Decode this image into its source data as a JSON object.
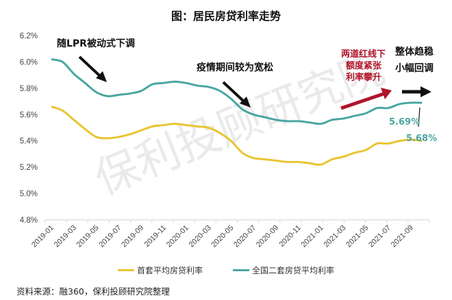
{
  "title": "图：居民房贷利率走势",
  "chart_data": {
    "type": "line",
    "title": "图：居民房贷利率走势",
    "xlabel": "",
    "ylabel": "",
    "ylim": [
      4.8,
      6.2
    ],
    "yticks": [
      "6.2%",
      "6.0%",
      "5.8%",
      "5.6%",
      "5.4%",
      "5.2%",
      "5.0%",
      "4.8%"
    ],
    "xtick_labels": [
      "2019-01",
      "2019-03",
      "2019-05",
      "2019-07",
      "2019-09",
      "2019-11",
      "2020-01",
      "2020-03",
      "2020-05",
      "2020-07",
      "2020-09",
      "2020-11",
      "2021-01",
      "2021-03",
      "2021-05",
      "2021-07",
      "2021-09"
    ],
    "x": [
      "2019-01",
      "2019-02",
      "2019-03",
      "2019-04",
      "2019-05",
      "2019-06",
      "2019-07",
      "2019-08",
      "2019-09",
      "2019-10",
      "2019-11",
      "2019-12",
      "2020-01",
      "2020-02",
      "2020-03",
      "2020-04",
      "2020-05",
      "2020-06",
      "2020-07",
      "2020-08",
      "2020-09",
      "2020-10",
      "2020-11",
      "2020-12",
      "2021-01",
      "2021-02",
      "2021-03",
      "2021-04",
      "2021-05",
      "2021-06",
      "2021-07",
      "2021-08",
      "2021-09",
      "2021-10"
    ],
    "grid": false,
    "legend_position": "bottom",
    "series": [
      {
        "name": "首套平均房贷利率",
        "color": "#e8c532",
        "values": [
          5.66,
          5.63,
          5.56,
          5.49,
          5.43,
          5.42,
          5.43,
          5.45,
          5.48,
          5.51,
          5.52,
          5.53,
          5.52,
          5.51,
          5.5,
          5.46,
          5.4,
          5.31,
          5.27,
          5.26,
          5.25,
          5.24,
          5.24,
          5.23,
          5.22,
          5.26,
          5.28,
          5.31,
          5.33,
          5.38,
          5.38,
          5.4,
          5.41,
          5.4
        ]
      },
      {
        "name": "全国二套房贷平均利率",
        "color": "#4aa6a0",
        "values": [
          6.02,
          6.0,
          5.91,
          5.84,
          5.77,
          5.74,
          5.75,
          5.76,
          5.78,
          5.83,
          5.84,
          5.85,
          5.84,
          5.82,
          5.81,
          5.78,
          5.72,
          5.64,
          5.6,
          5.58,
          5.56,
          5.55,
          5.55,
          5.54,
          5.53,
          5.56,
          5.57,
          5.59,
          5.61,
          5.65,
          5.65,
          5.68,
          5.69,
          5.69
        ]
      }
    ],
    "annotations": [
      {
        "text": "随LPR被动式下调",
        "color": "#111111"
      },
      {
        "text": "疫情期间较为宽松",
        "color": "#111111"
      },
      {
        "text": [
          "两道红线下",
          "额度紧张",
          "利率攀升"
        ],
        "color": "#b0142a"
      },
      {
        "text": [
          "整体趋稳",
          "小幅回调"
        ],
        "color": "#111111"
      },
      {
        "text": "5.69%",
        "color": "#4aa6a0"
      },
      {
        "text": "5.68%",
        "color": "#4aa6a0"
      }
    ],
    "watermark": "保利投顾研究院"
  },
  "annotations": {
    "lpr": "随LPR被动式下调",
    "covid": "疫情期间较为宽松",
    "red_1": "两道红线下",
    "red_2": "额度紧张",
    "red_3": "利率攀升",
    "stable_1": "整体趋稳",
    "stable_2": "小幅回调",
    "val_second": "5.69%",
    "val_first": "5.68%"
  },
  "watermark": "保利投顾研究院",
  "legend": [
    {
      "label": "首套平均房贷利率",
      "color": "#e8c532"
    },
    {
      "label": "全国二套房贷平均利率",
      "color": "#4aa6a0"
    }
  ],
  "source": "资料来源：融360，保利投顾研究院整理"
}
